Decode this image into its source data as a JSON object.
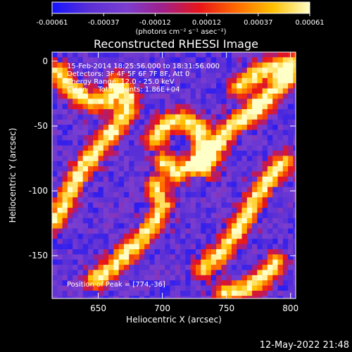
{
  "chart_data": {
    "type": "heatmap",
    "title": "Reconstructed RHESSI Image",
    "xlabel": "Heliocentric X (arcsec)",
    "ylabel": "Heliocentric Y (arcsec)",
    "xlim": [
      614,
      804
    ],
    "ylim": [
      -183,
      7
    ],
    "x_ticks": [
      650,
      700,
      750,
      800
    ],
    "y_ticks": [
      0,
      -50,
      -100,
      -150
    ],
    "colorbar": {
      "ticks": [
        "-0.00061",
        "-0.00037",
        "-0.00012",
        "0.00012",
        "0.00037",
        "0.00061"
      ],
      "range": [
        -0.00061,
        0.00061
      ],
      "unit_label": "(photons cm⁻² s⁻¹ asec⁻²)",
      "colors": [
        "#1414ff",
        "#5a2fd6",
        "#7a3ed0",
        "#a0208a",
        "#e8141a",
        "#ff6a00",
        "#ffc000",
        "#ffffc8"
      ]
    },
    "annotations": [
      "15-Feb-2014 18:25:56.000 to 18:31:56.000",
      "Detectors: 3F 4F 5F 6F 7F 8F, Att 0",
      "Energy Range: 12.0 - 25.0 keV",
      "Clean     Total counts: 1.86E+04"
    ],
    "peak_label": "Position of Peak = [774,-36]",
    "peak_position": [
      774,
      -36
    ],
    "emission_ridges": [
      {
        "name": "left-lower",
        "points": [
          [
            616,
            -124
          ],
          [
            628,
            -100
          ],
          [
            638,
            -82
          ],
          [
            648,
            -70
          ],
          [
            660,
            -55
          ],
          [
            672,
            -40
          ],
          [
            674,
            -28
          ],
          [
            664,
            -18
          ]
        ]
      },
      {
        "name": "left-upper",
        "points": [
          [
            618,
            -8
          ],
          [
            630,
            -22
          ],
          [
            644,
            -32
          ],
          [
            658,
            -30
          ]
        ]
      },
      {
        "name": "bottom-arc",
        "points": [
          [
            648,
            -168
          ],
          [
            662,
            -158
          ],
          [
            676,
            -144
          ],
          [
            692,
            -128
          ],
          [
            700,
            -112
          ],
          [
            694,
            -96
          ]
        ]
      },
      {
        "name": "center-loop",
        "points": [
          [
            694,
            -60
          ],
          [
            704,
            -48
          ],
          [
            716,
            -45
          ],
          [
            728,
            -52
          ],
          [
            732,
            -66
          ],
          [
            724,
            -80
          ],
          [
            712,
            -86
          ],
          [
            702,
            -78
          ]
        ]
      },
      {
        "name": "right-ridge",
        "points": [
          [
            734,
            -82
          ],
          [
            744,
            -62
          ],
          [
            754,
            -50
          ],
          [
            764,
            -44
          ],
          [
            774,
            -36
          ],
          [
            786,
            -24
          ],
          [
            798,
            -14
          ]
        ]
      },
      {
        "name": "right-lower",
        "points": [
          [
            732,
            -160
          ],
          [
            746,
            -148
          ],
          [
            756,
            -134
          ],
          [
            766,
            -118
          ],
          [
            776,
            -100
          ],
          [
            786,
            -88
          ],
          [
            796,
            -78
          ]
        ]
      },
      {
        "name": "bottom-right",
        "points": [
          [
            748,
            -180
          ],
          [
            764,
            -176
          ],
          [
            778,
            -168
          ],
          [
            788,
            -156
          ]
        ]
      },
      {
        "name": "right-top",
        "points": [
          [
            760,
            -20
          ],
          [
            776,
            -8
          ],
          [
            790,
            -4
          ],
          [
            802,
            -2
          ]
        ]
      }
    ]
  },
  "footer": {
    "timestamp": "12-May-2022 21:48"
  }
}
